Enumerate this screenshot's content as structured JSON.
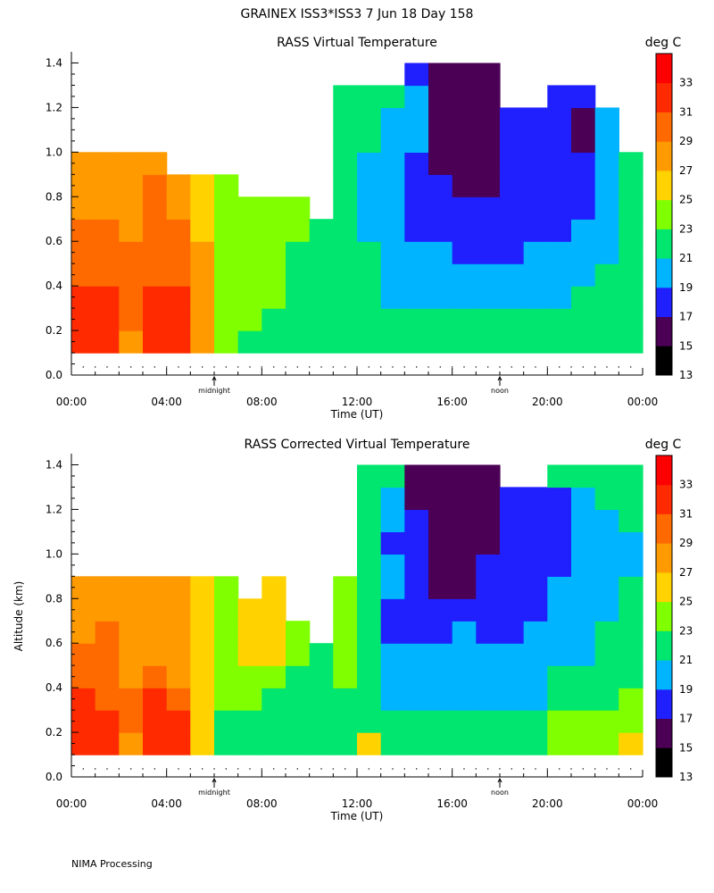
{
  "figure": {
    "title": "GRAINEX ISS3*ISS3    7 Jun 18 Day 158",
    "footer": "NIMA Processing",
    "ylabel": "Altitude (km)"
  },
  "colorbar": {
    "unit": "deg C",
    "bin_edges": [
      13,
      15,
      17,
      19,
      21,
      23,
      25,
      27,
      29,
      31,
      33,
      35
    ],
    "tick_labels": [
      "13",
      "15",
      "17",
      "19",
      "21",
      "23",
      "25",
      "27",
      "29",
      "31",
      "33"
    ],
    "colors": [
      "#000000",
      "#4b0056",
      "#2020ff",
      "#00b4ff",
      "#00e66e",
      "#80ff00",
      "#ffd200",
      "#ff9a00",
      "#ff6a00",
      "#ff2a00",
      "#ff0000"
    ]
  },
  "x_axis": {
    "label": "Time (UT)",
    "tick_labels": [
      "00:00",
      "04:00",
      "08:00",
      "12:00",
      "16:00",
      "20:00",
      "00:00"
    ],
    "tick_values": [
      0,
      4,
      8,
      12,
      16,
      20,
      24
    ],
    "local_markers": [
      {
        "label": "midnight",
        "x": 6
      },
      {
        "label": "noon",
        "x": 18
      }
    ]
  },
  "y_axis": {
    "tick_labels": [
      "0.0",
      "0.2",
      "0.4",
      "0.6",
      "0.8",
      "1.0",
      "1.2",
      "1.4"
    ],
    "tick_values": [
      0,
      0.2,
      0.4,
      0.6,
      0.8,
      1.0,
      1.2,
      1.4
    ]
  },
  "chart_data": [
    {
      "type": "heatmap",
      "title": "RASS Virtual Temperature",
      "xlabel": "Time (UT)",
      "ylabel": "Altitude (km)",
      "colorbar_label": "deg C",
      "xlim": [
        0,
        24
      ],
      "ylim": [
        0,
        1.45
      ],
      "x": [
        0.5,
        1.5,
        2.5,
        3.5,
        4.5,
        5.5,
        6.5,
        7.5,
        8.5,
        9.5,
        10.5,
        11.5,
        12.5,
        13.5,
        14.5,
        15.5,
        16.5,
        17.5,
        18.5,
        19.5,
        20.5,
        21.5,
        22.5,
        23.5
      ],
      "y": [
        0.15,
        0.25,
        0.35,
        0.45,
        0.55,
        0.65,
        0.75,
        0.85,
        0.95,
        1.05,
        1.15,
        1.25,
        1.35
      ],
      "columns": [
        [
          32,
          32,
          32,
          30,
          30,
          30,
          28,
          28,
          28,
          null,
          null,
          null,
          null
        ],
        [
          31,
          32,
          31,
          30,
          30,
          30,
          28,
          28,
          28,
          null,
          null,
          null,
          null
        ],
        [
          27,
          30,
          30,
          30,
          30,
          28,
          28,
          28,
          28,
          null,
          null,
          null,
          null
        ],
        [
          32,
          32,
          32,
          30,
          30,
          30,
          30,
          30,
          28,
          null,
          null,
          null,
          null
        ],
        [
          32,
          32,
          31,
          30,
          30,
          30,
          28,
          28,
          null,
          null,
          null,
          null,
          null
        ],
        [
          27,
          27,
          27,
          27,
          27,
          26,
          26,
          26,
          null,
          null,
          null,
          null,
          null
        ],
        [
          24,
          24,
          24,
          24,
          24,
          24,
          24,
          24,
          null,
          null,
          null,
          null,
          null
        ],
        [
          22,
          23,
          23,
          23,
          23,
          23,
          23,
          null,
          null,
          null,
          null,
          null,
          null
        ],
        [
          22,
          22,
          23,
          23,
          23,
          23,
          23,
          null,
          null,
          null,
          null,
          null,
          null
        ],
        [
          22,
          22,
          22,
          22,
          22,
          23,
          23,
          null,
          null,
          null,
          null,
          null,
          null
        ],
        [
          22,
          22,
          22,
          22,
          22,
          22,
          null,
          null,
          null,
          null,
          null,
          null,
          null
        ],
        [
          22,
          22,
          22,
          22,
          22,
          22,
          22,
          22,
          22,
          22,
          22,
          22,
          null
        ],
        [
          22,
          22,
          22,
          22,
          22,
          20,
          20,
          20,
          20,
          22,
          22,
          22,
          null
        ],
        [
          22,
          22,
          20,
          20,
          20,
          20,
          20,
          20,
          20,
          20,
          20,
          22,
          null
        ],
        [
          22,
          22,
          20,
          20,
          20,
          18,
          18,
          18,
          18,
          20,
          20,
          20,
          18
        ],
        [
          22,
          22,
          20,
          20,
          20,
          18,
          18,
          18,
          16,
          16,
          16,
          16,
          16
        ],
        [
          22,
          22,
          20,
          20,
          18,
          18,
          18,
          16,
          16,
          16,
          16,
          16,
          16
        ],
        [
          22,
          22,
          20,
          20,
          18,
          18,
          18,
          16,
          16,
          16,
          16,
          16,
          16
        ],
        [
          22,
          22,
          20,
          20,
          18,
          18,
          18,
          18,
          18,
          18,
          18,
          null,
          null
        ],
        [
          22,
          22,
          20,
          20,
          20,
          18,
          18,
          18,
          18,
          18,
          18,
          null,
          null
        ],
        [
          22,
          22,
          20,
          20,
          20,
          18,
          18,
          18,
          18,
          18,
          18,
          18,
          null
        ],
        [
          22,
          22,
          22,
          20,
          20,
          20,
          18,
          18,
          18,
          16,
          16,
          18,
          null
        ],
        [
          22,
          22,
          22,
          22,
          20,
          20,
          20,
          20,
          20,
          20,
          20,
          null,
          null
        ],
        [
          22,
          22,
          22,
          22,
          22,
          22,
          22,
          22,
          22,
          null,
          null,
          null,
          null
        ]
      ]
    },
    {
      "type": "heatmap",
      "title": "RASS Corrected Virtual Temperature",
      "xlabel": "Time (UT)",
      "ylabel": "Altitude (km)",
      "colorbar_label": "deg C",
      "xlim": [
        0,
        24
      ],
      "ylim": [
        0,
        1.45
      ],
      "x": [
        0.5,
        1.5,
        2.5,
        3.5,
        4.5,
        5.5,
        6.5,
        7.5,
        8.5,
        9.5,
        10.5,
        11.5,
        12.5,
        13.5,
        14.5,
        15.5,
        16.5,
        17.5,
        18.5,
        19.5,
        20.5,
        21.5,
        22.5,
        23.5
      ],
      "y": [
        0.15,
        0.25,
        0.35,
        0.45,
        0.55,
        0.65,
        0.75,
        0.85,
        0.95,
        1.05,
        1.15,
        1.25,
        1.35
      ],
      "columns": [
        [
          32,
          32,
          32,
          30,
          30,
          28,
          28,
          28,
          null,
          null,
          null,
          null,
          null
        ],
        [
          31,
          31,
          30,
          30,
          30,
          30,
          28,
          28,
          null,
          null,
          null,
          null,
          null
        ],
        [
          27,
          30,
          30,
          28,
          28,
          28,
          28,
          28,
          null,
          null,
          null,
          null,
          null
        ],
        [
          32,
          32,
          32,
          30,
          28,
          28,
          28,
          28,
          null,
          null,
          null,
          null,
          null
        ],
        [
          32,
          32,
          30,
          28,
          28,
          28,
          28,
          28,
          null,
          null,
          null,
          null,
          null
        ],
        [
          26,
          26,
          26,
          26,
          26,
          26,
          26,
          26,
          null,
          null,
          null,
          null,
          null
        ],
        [
          22,
          22,
          24,
          24,
          24,
          24,
          24,
          24,
          null,
          null,
          null,
          null,
          null
        ],
        [
          22,
          22,
          24,
          24,
          26,
          26,
          26,
          null,
          null,
          null,
          null,
          null,
          null
        ],
        [
          22,
          22,
          22,
          24,
          26,
          26,
          26,
          26,
          null,
          null,
          null,
          null,
          null
        ],
        [
          22,
          22,
          22,
          22,
          24,
          24,
          null,
          null,
          null,
          null,
          null,
          null,
          null
        ],
        [
          22,
          22,
          22,
          22,
          22,
          null,
          null,
          null,
          null,
          null,
          null,
          null,
          null
        ],
        [
          22,
          22,
          22,
          24,
          24,
          24,
          24,
          24,
          null,
          null,
          null,
          null,
          null
        ],
        [
          26,
          22,
          22,
          22,
          22,
          22,
          22,
          22,
          22,
          22,
          22,
          22,
          22
        ],
        [
          22,
          22,
          20,
          20,
          20,
          18,
          18,
          20,
          20,
          18,
          20,
          20,
          22
        ],
        [
          22,
          22,
          20,
          20,
          20,
          18,
          18,
          18,
          18,
          18,
          18,
          16,
          16
        ],
        [
          22,
          22,
          20,
          20,
          20,
          18,
          18,
          16,
          16,
          16,
          16,
          16,
          16
        ],
        [
          22,
          22,
          20,
          20,
          20,
          20,
          18,
          16,
          16,
          16,
          16,
          16,
          16
        ],
        [
          22,
          22,
          20,
          20,
          20,
          18,
          18,
          18,
          18,
          16,
          16,
          16,
          16
        ],
        [
          22,
          22,
          20,
          20,
          20,
          18,
          18,
          18,
          18,
          18,
          18,
          18,
          null
        ],
        [
          22,
          22,
          20,
          20,
          20,
          20,
          18,
          18,
          18,
          18,
          18,
          18,
          null
        ],
        [
          24,
          24,
          22,
          22,
          20,
          20,
          20,
          20,
          18,
          18,
          18,
          18,
          22
        ],
        [
          24,
          24,
          22,
          22,
          20,
          20,
          20,
          20,
          20,
          20,
          20,
          20,
          22
        ],
        [
          24,
          24,
          22,
          22,
          22,
          22,
          20,
          20,
          20,
          20,
          20,
          22,
          22
        ],
        [
          26,
          24,
          24,
          22,
          22,
          22,
          22,
          22,
          20,
          20,
          22,
          22,
          22
        ]
      ]
    }
  ]
}
